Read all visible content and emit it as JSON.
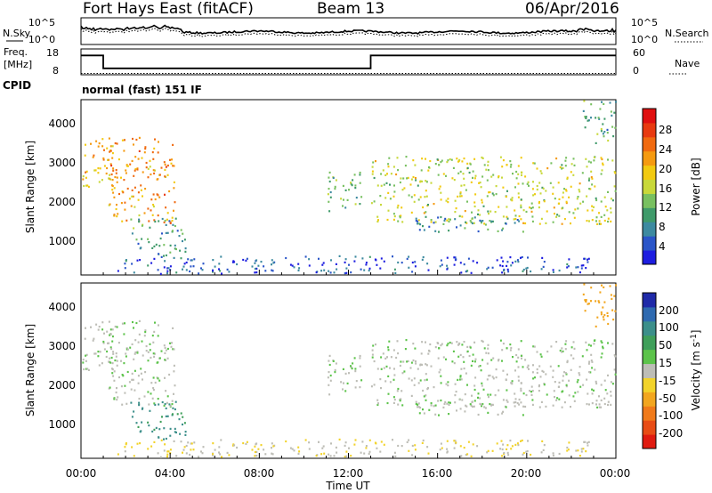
{
  "header": {
    "station": "Fort Hays East (fitACF)",
    "beam": "Beam 13",
    "date": "06/Apr/2016"
  },
  "noise_panel": {
    "left_label": "N.Sky",
    "right_label": "N.Search",
    "left_ticks": [
      "10^5",
      "10^0"
    ],
    "right_ticks": [
      "10^5",
      "10^0"
    ]
  },
  "freq_panel": {
    "left_label_line1": "Freq.",
    "left_label_line2": "[MHz]",
    "right_label": "Nave",
    "left_ticks": [
      "18",
      "8"
    ],
    "right_ticks": [
      "60",
      "0"
    ],
    "freq_steps": [
      {
        "start_h": 0.0,
        "end_h": 1.0,
        "mhz": 15.5
      },
      {
        "start_h": 1.0,
        "end_h": 13.0,
        "mhz": 10.5
      },
      {
        "start_h": 13.0,
        "end_h": 24.0,
        "mhz": 15.5
      }
    ],
    "freq_range": [
      8,
      18
    ],
    "nave_level": 3,
    "nave_range": [
      0,
      60
    ]
  },
  "cpid": {
    "label": "CPID",
    "value": "normal (fast) 151 IF"
  },
  "x_axis": {
    "label": "Time UT",
    "ticks": [
      "00:00",
      "04:00",
      "08:00",
      "12:00",
      "16:00",
      "20:00",
      "00:00"
    ]
  },
  "power_panel": {
    "ylabel": "Slant Range [km]",
    "yticks": [
      "1000",
      "2000",
      "3000",
      "4000"
    ],
    "colorbar_label": "Power [dB]",
    "colorbar_ticks": [
      "4",
      "8",
      "12",
      "16",
      "20",
      "24",
      "28"
    ],
    "colors": [
      "#1d1de0",
      "#2a55c8",
      "#3d8aa0",
      "#3f9a6a",
      "#78c060",
      "#c8d83a",
      "#f2ca10",
      "#f59a10",
      "#f06a10",
      "#e83a10",
      "#e01010"
    ]
  },
  "velocity_panel": {
    "ylabel": "Slant Range [km]",
    "yticks": [
      "1000",
      "2000",
      "3000",
      "4000"
    ],
    "colorbar_label": "Velocity [m s",
    "colorbar_label_sup": "-1",
    "colorbar_label_end": "]",
    "colorbar_ticks": [
      "200",
      "100",
      "50",
      "15",
      "-15",
      "-50",
      "-100",
      "-200"
    ],
    "colors": [
      "#1f2aa8",
      "#2f6ab0",
      "#3c8f8a",
      "#3f9f5a",
      "#5cc34a",
      "#bdbdb6",
      "#f2d32a",
      "#f2a61f",
      "#f07a1a",
      "#e84c15",
      "#e01b10"
    ]
  },
  "chart_data": {
    "type": "heatmap",
    "x_unit": "hours UT",
    "xlim": [
      0,
      24
    ],
    "ylim": [
      200,
      4600
    ],
    "range_unit": "km",
    "features": [
      {
        "id": "early-upper-band",
        "t": [
          0.0,
          1.6
        ],
        "range_km": [
          2400,
          3700
        ],
        "power_db": 22,
        "velocity": 0
      },
      {
        "id": "arc-to-04",
        "t": [
          1.2,
          4.2
        ],
        "range_km": [
          1500,
          3700
        ],
        "power_db": 24,
        "velocity": 0
      },
      {
        "id": "low-band-03",
        "t": [
          2.2,
          4.7
        ],
        "range_km": [
          700,
          1650
        ],
        "power_db": 12,
        "velocity": 40
      },
      {
        "id": "near-range-clutter",
        "t": [
          1.5,
          23.0
        ],
        "range_km": [
          250,
          700
        ],
        "power_db": 6,
        "velocity": -15
      },
      {
        "id": "patch-11-12",
        "t": [
          11.0,
          12.6
        ],
        "range_km": [
          1800,
          2800
        ],
        "power_db": 14,
        "velocity": 0
      },
      {
        "id": "evening-band",
        "t": [
          13.0,
          24.0
        ],
        "range_km": [
          1500,
          3200
        ],
        "power_db": 18,
        "velocity": 0
      },
      {
        "id": "lower-trail",
        "t": [
          15.0,
          20.0
        ],
        "range_km": [
          1300,
          1700
        ],
        "power_db": 10,
        "velocity": 0
      },
      {
        "id": "late-high-range",
        "t": [
          22.5,
          24.0
        ],
        "range_km": [
          3500,
          4600
        ],
        "power_db": 12,
        "velocity": -60
      }
    ]
  }
}
